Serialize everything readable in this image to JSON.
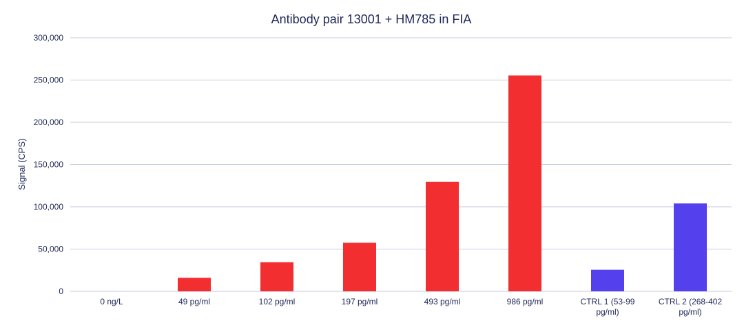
{
  "chart_data": {
    "type": "bar",
    "title": "Antibody pair 13001 + HM785 in FIA",
    "ylabel": "Signal (CPS)",
    "xlabel": "",
    "ylim": [
      0,
      300000
    ],
    "y_ticks": [
      "0",
      "50,000",
      "100,000",
      "150,000",
      "200,000",
      "250,000",
      "300,000"
    ],
    "y_tick_values": [
      0,
      50000,
      100000,
      150000,
      200000,
      250000,
      300000
    ],
    "grid": true,
    "categories": [
      [
        "0 ng/L"
      ],
      [
        "49 pg/ml"
      ],
      [
        "102 pg/ml"
      ],
      [
        "197 pg/ml"
      ],
      [
        "493 pg/ml"
      ],
      [
        "986 pg/ml"
      ],
      [
        "CTRL 1 (53-99",
        "pg/ml)"
      ],
      [
        "CTRL 2 (268-402",
        "pg/ml)"
      ]
    ],
    "values": [
      0,
      16000,
      34500,
      57500,
      129500,
      255500,
      25500,
      104000
    ],
    "colors": [
      "#f22e30",
      "#f22e30",
      "#f22e30",
      "#f22e30",
      "#f22e30",
      "#f22e30",
      "#5540ee",
      "#5540ee"
    ]
  }
}
